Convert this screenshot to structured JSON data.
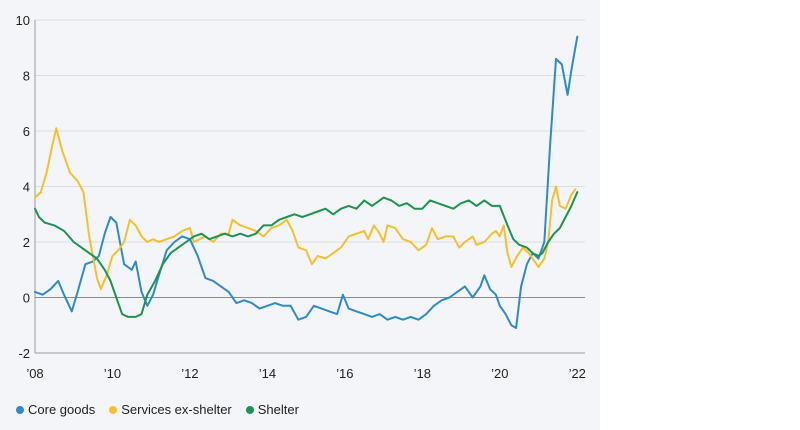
{
  "chart_data": {
    "type": "line",
    "title": "",
    "xlabel": "",
    "ylabel": "",
    "xlim": [
      2008,
      2022.2
    ],
    "ylim": [
      -2,
      10
    ],
    "grid": "horizontal",
    "legend_position": "bottom-left",
    "x_ticks": [
      {
        "value": 2008,
        "label": "’08"
      },
      {
        "value": 2010,
        "label": "’10"
      },
      {
        "value": 2012,
        "label": "’12"
      },
      {
        "value": 2014,
        "label": "’14"
      },
      {
        "value": 2016,
        "label": "’16"
      },
      {
        "value": 2018,
        "label": "’18"
      },
      {
        "value": 2020,
        "label": "’20"
      },
      {
        "value": 2022,
        "label": "’22"
      }
    ],
    "y_ticks": [
      {
        "value": -2,
        "label": "-2"
      },
      {
        "value": 0,
        "label": "0"
      },
      {
        "value": 2,
        "label": "2"
      },
      {
        "value": 4,
        "label": "4"
      },
      {
        "value": 6,
        "label": "6"
      },
      {
        "value": 8,
        "label": "8"
      },
      {
        "value": 10,
        "label": "10"
      }
    ],
    "series": [
      {
        "name": "Core goods",
        "color": "#2e8bc9",
        "points": [
          [
            2008,
            0.2
          ],
          [
            2008.2,
            0.1
          ],
          [
            2008.4,
            0.3
          ],
          [
            2008.6,
            0.6
          ],
          [
            2008.75,
            0.1
          ],
          [
            2008.95,
            -0.5
          ],
          [
            2009.1,
            0.2
          ],
          [
            2009.3,
            1.2
          ],
          [
            2009.5,
            1.3
          ],
          [
            2009.65,
            1.5
          ],
          [
            2009.8,
            2.3
          ],
          [
            2009.95,
            2.9
          ],
          [
            2010.1,
            2.7
          ],
          [
            2010.3,
            1.2
          ],
          [
            2010.5,
            1.0
          ],
          [
            2010.6,
            1.3
          ],
          [
            2010.75,
            0.2
          ],
          [
            2010.9,
            -0.3
          ],
          [
            2011.05,
            0.1
          ],
          [
            2011.2,
            0.8
          ],
          [
            2011.4,
            1.7
          ],
          [
            2011.6,
            2.0
          ],
          [
            2011.8,
            2.2
          ],
          [
            2012.0,
            2.1
          ],
          [
            2012.2,
            1.5
          ],
          [
            2012.4,
            0.7
          ],
          [
            2012.6,
            0.6
          ],
          [
            2012.8,
            0.4
          ],
          [
            2013.0,
            0.2
          ],
          [
            2013.2,
            -0.2
          ],
          [
            2013.4,
            -0.1
          ],
          [
            2013.6,
            -0.2
          ],
          [
            2013.8,
            -0.4
          ],
          [
            2014.0,
            -0.3
          ],
          [
            2014.2,
            -0.2
          ],
          [
            2014.4,
            -0.3
          ],
          [
            2014.6,
            -0.3
          ],
          [
            2014.8,
            -0.8
          ],
          [
            2015.0,
            -0.7
          ],
          [
            2015.2,
            -0.3
          ],
          [
            2015.4,
            -0.4
          ],
          [
            2015.6,
            -0.5
          ],
          [
            2015.8,
            -0.6
          ],
          [
            2015.95,
            0.1
          ],
          [
            2016.1,
            -0.4
          ],
          [
            2016.3,
            -0.5
          ],
          [
            2016.5,
            -0.6
          ],
          [
            2016.7,
            -0.7
          ],
          [
            2016.9,
            -0.6
          ],
          [
            2017.1,
            -0.8
          ],
          [
            2017.3,
            -0.7
          ],
          [
            2017.5,
            -0.8
          ],
          [
            2017.7,
            -0.7
          ],
          [
            2017.9,
            -0.8
          ],
          [
            2018.1,
            -0.6
          ],
          [
            2018.3,
            -0.3
          ],
          [
            2018.5,
            -0.1
          ],
          [
            2018.7,
            0.0
          ],
          [
            2018.9,
            0.2
          ],
          [
            2019.1,
            0.4
          ],
          [
            2019.3,
            0.0
          ],
          [
            2019.5,
            0.4
          ],
          [
            2019.6,
            0.8
          ],
          [
            2019.75,
            0.3
          ],
          [
            2019.9,
            0.1
          ],
          [
            2020.0,
            -0.3
          ],
          [
            2020.15,
            -0.6
          ],
          [
            2020.3,
            -1.0
          ],
          [
            2020.42,
            -1.1
          ],
          [
            2020.55,
            0.4
          ],
          [
            2020.7,
            1.2
          ],
          [
            2020.85,
            1.6
          ],
          [
            2021.0,
            1.4
          ],
          [
            2021.15,
            2.0
          ],
          [
            2021.3,
            5.5
          ],
          [
            2021.45,
            8.6
          ],
          [
            2021.6,
            8.4
          ],
          [
            2021.75,
            7.3
          ],
          [
            2021.85,
            8.2
          ],
          [
            2022.0,
            9.4
          ]
        ]
      },
      {
        "name": "Services ex-shelter",
        "color": "#f5c030",
        "points": [
          [
            2008,
            3.6
          ],
          [
            2008.15,
            3.8
          ],
          [
            2008.3,
            4.5
          ],
          [
            2008.45,
            5.5
          ],
          [
            2008.55,
            6.1
          ],
          [
            2008.7,
            5.3
          ],
          [
            2008.9,
            4.5
          ],
          [
            2009.1,
            4.2
          ],
          [
            2009.25,
            3.8
          ],
          [
            2009.4,
            2.2
          ],
          [
            2009.6,
            0.7
          ],
          [
            2009.7,
            0.3
          ],
          [
            2009.85,
            0.8
          ],
          [
            2010.0,
            1.5
          ],
          [
            2010.15,
            1.7
          ],
          [
            2010.3,
            2.0
          ],
          [
            2010.45,
            2.8
          ],
          [
            2010.6,
            2.6
          ],
          [
            2010.75,
            2.2
          ],
          [
            2010.9,
            2.0
          ],
          [
            2011.05,
            2.1
          ],
          [
            2011.2,
            2.0
          ],
          [
            2011.4,
            2.1
          ],
          [
            2011.6,
            2.2
          ],
          [
            2011.8,
            2.4
          ],
          [
            2012.0,
            2.5
          ],
          [
            2012.1,
            2.0
          ],
          [
            2012.25,
            2.1
          ],
          [
            2012.4,
            2.2
          ],
          [
            2012.6,
            2.0
          ],
          [
            2012.8,
            2.3
          ],
          [
            2013.0,
            2.3
          ],
          [
            2013.1,
            2.8
          ],
          [
            2013.3,
            2.6
          ],
          [
            2013.5,
            2.5
          ],
          [
            2013.7,
            2.4
          ],
          [
            2013.9,
            2.2
          ],
          [
            2014.1,
            2.5
          ],
          [
            2014.3,
            2.6
          ],
          [
            2014.5,
            2.8
          ],
          [
            2014.65,
            2.4
          ],
          [
            2014.8,
            1.8
          ],
          [
            2015.0,
            1.7
          ],
          [
            2015.15,
            1.2
          ],
          [
            2015.3,
            1.5
          ],
          [
            2015.5,
            1.4
          ],
          [
            2015.7,
            1.6
          ],
          [
            2015.9,
            1.8
          ],
          [
            2016.1,
            2.2
          ],
          [
            2016.3,
            2.3
          ],
          [
            2016.5,
            2.4
          ],
          [
            2016.6,
            2.1
          ],
          [
            2016.75,
            2.6
          ],
          [
            2016.9,
            2.3
          ],
          [
            2017.0,
            2.0
          ],
          [
            2017.1,
            2.6
          ],
          [
            2017.3,
            2.5
          ],
          [
            2017.5,
            2.1
          ],
          [
            2017.7,
            2.0
          ],
          [
            2017.9,
            1.7
          ],
          [
            2018.1,
            1.9
          ],
          [
            2018.25,
            2.5
          ],
          [
            2018.4,
            2.1
          ],
          [
            2018.6,
            2.2
          ],
          [
            2018.8,
            2.2
          ],
          [
            2018.95,
            1.8
          ],
          [
            2019.1,
            2.0
          ],
          [
            2019.3,
            2.2
          ],
          [
            2019.4,
            1.9
          ],
          [
            2019.6,
            2.0
          ],
          [
            2019.8,
            2.3
          ],
          [
            2019.9,
            2.4
          ],
          [
            2020.0,
            2.2
          ],
          [
            2020.1,
            2.6
          ],
          [
            2020.2,
            1.6
          ],
          [
            2020.3,
            1.1
          ],
          [
            2020.45,
            1.5
          ],
          [
            2020.6,
            1.8
          ],
          [
            2020.75,
            1.6
          ],
          [
            2020.9,
            1.3
          ],
          [
            2021.0,
            1.1
          ],
          [
            2021.15,
            1.4
          ],
          [
            2021.25,
            2.0
          ],
          [
            2021.35,
            3.5
          ],
          [
            2021.45,
            4.0
          ],
          [
            2021.55,
            3.3
          ],
          [
            2021.7,
            3.2
          ],
          [
            2021.85,
            3.7
          ],
          [
            2021.95,
            3.9
          ]
        ]
      },
      {
        "name": "Shelter",
        "color": "#1c9451",
        "points": [
          [
            2008,
            3.2
          ],
          [
            2008.1,
            2.9
          ],
          [
            2008.25,
            2.7
          ],
          [
            2008.5,
            2.6
          ],
          [
            2008.75,
            2.4
          ],
          [
            2009.0,
            2.0
          ],
          [
            2009.2,
            1.8
          ],
          [
            2009.4,
            1.6
          ],
          [
            2009.6,
            1.4
          ],
          [
            2009.8,
            1.0
          ],
          [
            2009.95,
            0.6
          ],
          [
            2010.1,
            0.0
          ],
          [
            2010.25,
            -0.6
          ],
          [
            2010.4,
            -0.7
          ],
          [
            2010.6,
            -0.7
          ],
          [
            2010.75,
            -0.6
          ],
          [
            2010.9,
            0.1
          ],
          [
            2011.1,
            0.6
          ],
          [
            2011.3,
            1.2
          ],
          [
            2011.5,
            1.6
          ],
          [
            2011.7,
            1.8
          ],
          [
            2011.9,
            2.0
          ],
          [
            2012.1,
            2.2
          ],
          [
            2012.3,
            2.3
          ],
          [
            2012.5,
            2.1
          ],
          [
            2012.7,
            2.2
          ],
          [
            2012.9,
            2.3
          ],
          [
            2013.1,
            2.2
          ],
          [
            2013.3,
            2.3
          ],
          [
            2013.5,
            2.2
          ],
          [
            2013.7,
            2.3
          ],
          [
            2013.9,
            2.6
          ],
          [
            2014.1,
            2.6
          ],
          [
            2014.3,
            2.8
          ],
          [
            2014.5,
            2.9
          ],
          [
            2014.7,
            3.0
          ],
          [
            2014.9,
            2.9
          ],
          [
            2015.1,
            3.0
          ],
          [
            2015.3,
            3.1
          ],
          [
            2015.5,
            3.2
          ],
          [
            2015.7,
            3.0
          ],
          [
            2015.9,
            3.2
          ],
          [
            2016.1,
            3.3
          ],
          [
            2016.3,
            3.2
          ],
          [
            2016.5,
            3.5
          ],
          [
            2016.7,
            3.3
          ],
          [
            2016.9,
            3.5
          ],
          [
            2017.0,
            3.6
          ],
          [
            2017.2,
            3.5
          ],
          [
            2017.4,
            3.3
          ],
          [
            2017.6,
            3.4
          ],
          [
            2017.8,
            3.2
          ],
          [
            2018.0,
            3.2
          ],
          [
            2018.2,
            3.5
          ],
          [
            2018.4,
            3.4
          ],
          [
            2018.6,
            3.3
          ],
          [
            2018.8,
            3.2
          ],
          [
            2019.0,
            3.4
          ],
          [
            2019.2,
            3.5
          ],
          [
            2019.4,
            3.3
          ],
          [
            2019.6,
            3.5
          ],
          [
            2019.8,
            3.3
          ],
          [
            2020.0,
            3.3
          ],
          [
            2020.2,
            2.6
          ],
          [
            2020.35,
            2.1
          ],
          [
            2020.5,
            1.9
          ],
          [
            2020.7,
            1.8
          ],
          [
            2020.85,
            1.6
          ],
          [
            2021.0,
            1.5
          ],
          [
            2021.1,
            1.6
          ],
          [
            2021.25,
            2.0
          ],
          [
            2021.4,
            2.3
          ],
          [
            2021.55,
            2.5
          ],
          [
            2021.7,
            2.9
          ],
          [
            2021.85,
            3.3
          ],
          [
            2022.0,
            3.8
          ]
        ]
      }
    ]
  }
}
